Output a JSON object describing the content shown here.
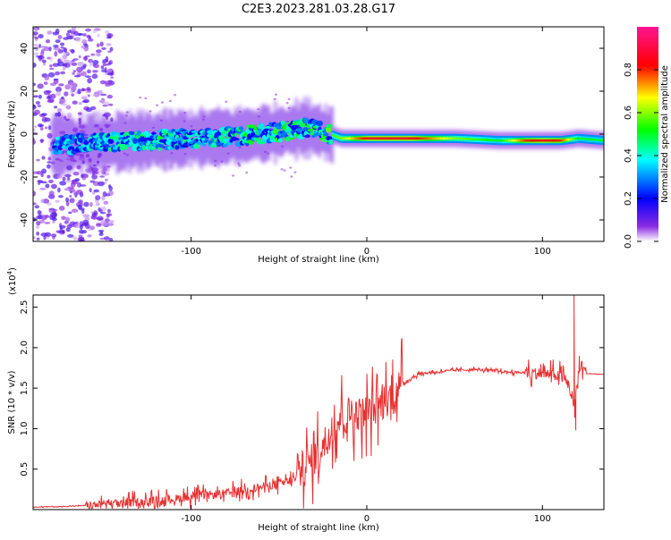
{
  "chart_data": [
    {
      "type": "heatmap",
      "title": "C2E3.2023.281.03.28.G17",
      "xlabel": "Height of straight line (km)",
      "ylabel": "Frequency (Hz)",
      "xlim": [
        -190,
        135
      ],
      "ylim": [
        -50,
        50
      ],
      "xticks": [
        -100,
        0,
        100
      ],
      "yticks": [
        -40,
        -20,
        0,
        20,
        40
      ],
      "colorbar": {
        "label": "Normalized spectral amplitude",
        "range": [
          0.0,
          1.0
        ],
        "ticks": [
          "0.0",
          "0.2",
          "0.4",
          "0.6",
          "0.8"
        ],
        "colors": [
          "#ffffff",
          "#8a2be2",
          "#0000ff",
          "#00ffff",
          "#00ff00",
          "#ffff00",
          "#ff0000",
          "#ff1493"
        ]
      },
      "ridge": {
        "x": [
          -175,
          -150,
          -125,
          -100,
          -75,
          -50,
          -35,
          -25,
          -15,
          0,
          25,
          50,
          75,
          90,
          100,
          110,
          120,
          135
        ],
        "frequency": [
          -5,
          -4,
          -3,
          -2,
          -1,
          1,
          3,
          1,
          -2,
          -2,
          -2,
          -2,
          -3,
          -3,
          -3,
          -3,
          -2,
          -3
        ],
        "amplitude": [
          0.35,
          0.4,
          0.45,
          0.4,
          0.45,
          0.5,
          0.45,
          0.5,
          0.6,
          0.85,
          0.85,
          0.6,
          0.5,
          0.8,
          0.85,
          0.8,
          0.5,
          0.5
        ]
      }
    },
    {
      "type": "line",
      "title": "",
      "xlabel": "Height of straight line (km)",
      "ylabel": "SNR (10 * v/v)",
      "y_scale_label": "(x10",
      "y_scale_exp": "4",
      "xlim": [
        -190,
        135
      ],
      "ylim": [
        0,
        2.65
      ],
      "xticks": [
        -100,
        0,
        100
      ],
      "yticks": [
        0.5,
        1.0,
        1.5,
        2.0,
        2.5
      ],
      "ytick_labels": [
        "0.5",
        "1.0",
        "1.5",
        "2.0",
        "2.5"
      ],
      "color": "#e83030",
      "series": [
        {
          "x": [
            -190,
            -170,
            -150,
            -130,
            -115,
            -100,
            -90,
            -80,
            -70,
            -60,
            -50,
            -40,
            -35,
            -30,
            -25,
            -20,
            -15,
            -10,
            -5,
            0,
            5,
            10,
            15,
            20,
            25,
            30,
            40,
            50,
            60,
            70,
            80,
            90,
            100,
            110,
            115,
            118,
            120,
            122,
            125,
            135
          ],
          "y": [
            0.03,
            0.04,
            0.06,
            0.09,
            0.12,
            0.16,
            0.18,
            0.2,
            0.24,
            0.28,
            0.32,
            0.38,
            0.5,
            0.65,
            0.8,
            1.0,
            1.15,
            1.2,
            1.18,
            1.22,
            1.25,
            1.32,
            1.45,
            1.55,
            1.62,
            1.68,
            1.7,
            1.72,
            1.73,
            1.72,
            1.7,
            1.69,
            1.68,
            1.65,
            1.55,
            1.25,
            1.6,
            1.8,
            1.68,
            1.67
          ]
        }
      ],
      "noise": [
        {
          "from": -160,
          "to": -40,
          "amp": 0.15
        },
        {
          "from": -40,
          "to": 20,
          "amp": 0.6
        },
        {
          "from": 20,
          "to": 90,
          "amp": 0.04
        },
        {
          "from": 90,
          "to": 125,
          "amp": 0.2
        }
      ],
      "spikes": [
        {
          "x": 118,
          "y": 2.65
        },
        {
          "x": 119,
          "y": 0.98
        },
        {
          "x": 121,
          "y": 1.9
        }
      ]
    }
  ]
}
